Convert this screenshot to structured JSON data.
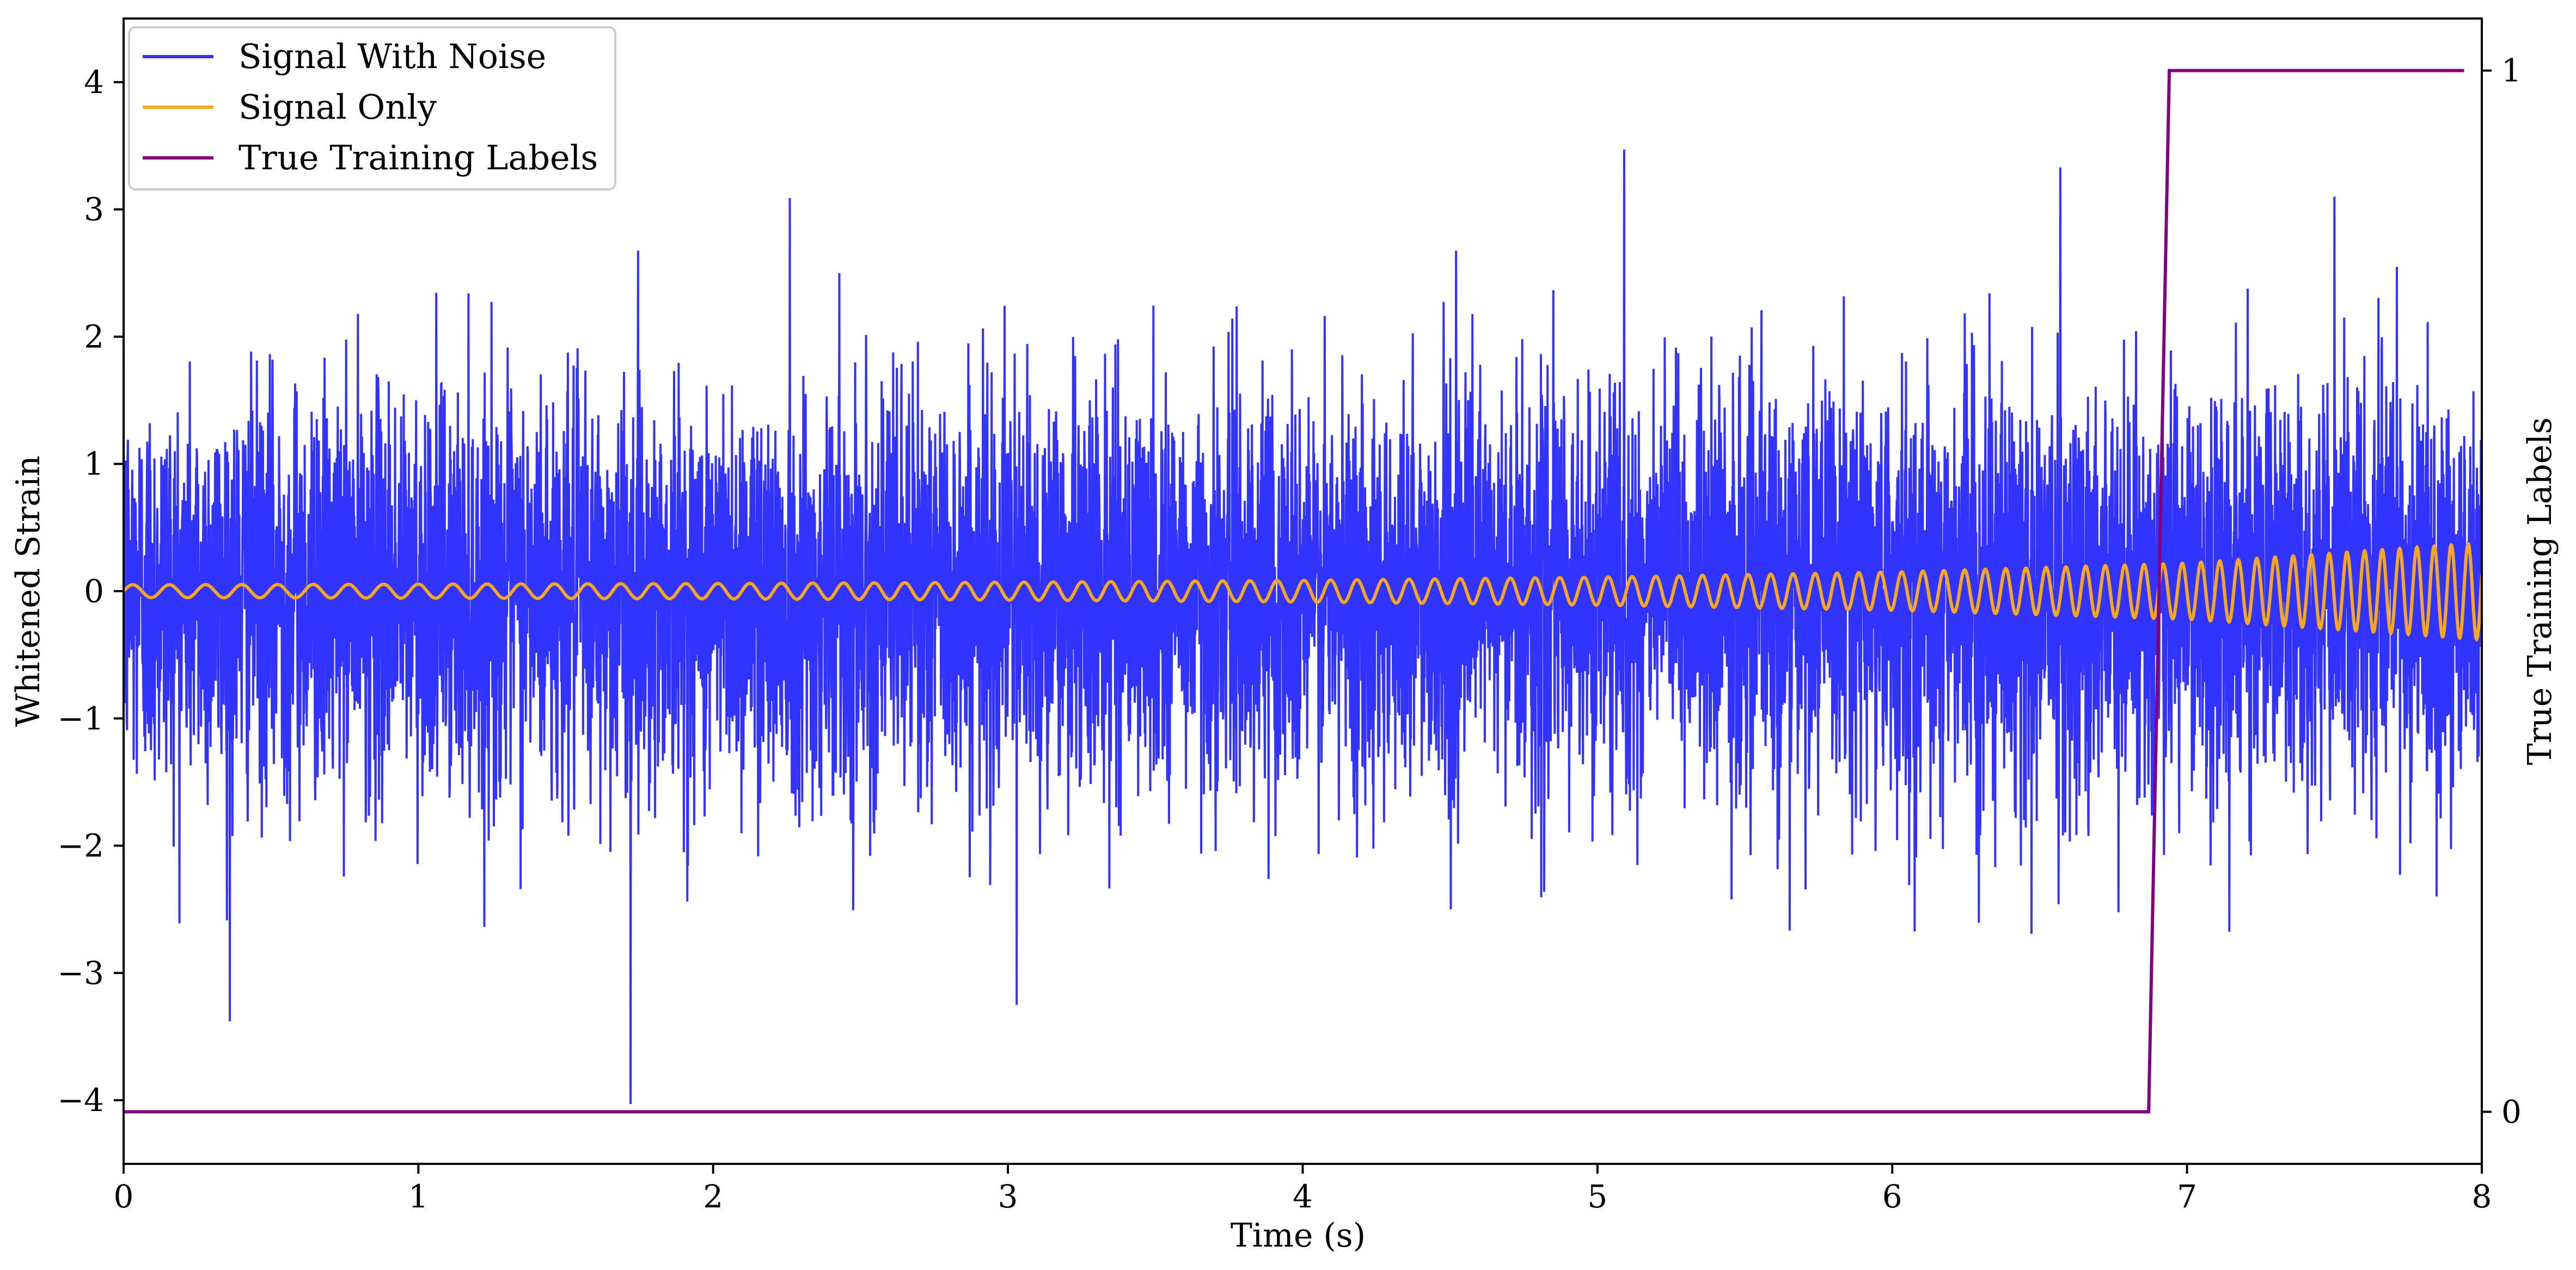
{
  "chart_data": {
    "type": "line",
    "xlabel": "Time (s)",
    "ylabel": "Whitened Strain",
    "y2label": "True Training Labels",
    "xlim": [
      0,
      8
    ],
    "ylim": [
      -4.5,
      4.5
    ],
    "y2lim": [
      -0.05,
      1.05
    ],
    "xticks": [
      "0",
      "1",
      "2",
      "3",
      "4",
      "5",
      "6",
      "7",
      "8"
    ],
    "yticks": [
      "−4",
      "−3",
      "−2",
      "−1",
      "0",
      "1",
      "2",
      "3",
      "4"
    ],
    "y2ticks": [
      "0",
      "1"
    ],
    "grid": false,
    "legend_position": "top-left",
    "series": [
      {
        "name": "Signal With Noise",
        "color": "#3333ff",
        "description_values": "dense whitened noise, roughly within ±2.5 with spikes: 3.47 at t≈5.09, −4.03 at t≈1.72, −3.38 at t≈0.36, 3.09 at t≈2.26",
        "extreme_points": [
          {
            "x": 0.36,
            "y": -3.38
          },
          {
            "x": 1.72,
            "y": -4.03
          },
          {
            "x": 2.26,
            "y": 3.09
          },
          {
            "x": 3.03,
            "y": -3.25
          },
          {
            "x": 5.09,
            "y": 3.47
          },
          {
            "x": 6.57,
            "y": 3.33
          },
          {
            "x": 7.5,
            "y": 3.1
          }
        ]
      },
      {
        "name": "Signal Only",
        "color": "#f5a623",
        "x": [
          0,
          1,
          2,
          3,
          4,
          5,
          6,
          7,
          8
        ],
        "amplitude": [
          0.05,
          0.055,
          0.06,
          0.07,
          0.085,
          0.11,
          0.15,
          0.22,
          0.38
        ],
        "frequency_hz": [
          8,
          8.5,
          9.2,
          10,
          11,
          12.2,
          13.8,
          15.6,
          17.5
        ]
      },
      {
        "name": "True Training Labels",
        "color": "#800080",
        "axis": "right",
        "x": [
          0,
          6.87,
          6.94,
          7.94
        ],
        "y": [
          0,
          0,
          1,
          1
        ]
      }
    ]
  }
}
